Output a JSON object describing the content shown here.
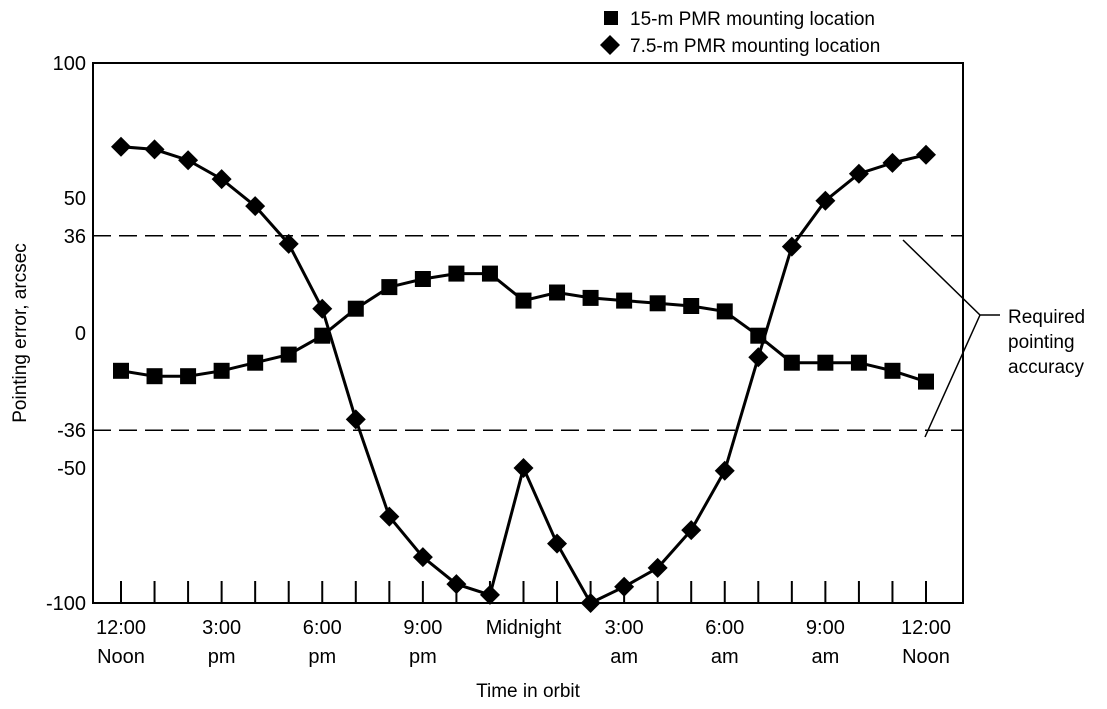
{
  "chart_data": {
    "type": "line",
    "title": "",
    "xlabel": "Time in orbit",
    "ylabel": "Pointing error, arcsec",
    "ylim": [
      -100,
      100
    ],
    "xlim": [
      0,
      24
    ],
    "yticks": [
      100,
      50,
      36,
      0,
      -36,
      -50,
      -100
    ],
    "xticks": [
      {
        "x": 0,
        "line1": "12:00",
        "line2": "Noon"
      },
      {
        "x": 3,
        "line1": "3:00",
        "line2": "pm"
      },
      {
        "x": 6,
        "line1": "6:00",
        "line2": "pm"
      },
      {
        "x": 9,
        "line1": "9:00",
        "line2": "pm"
      },
      {
        "x": 12,
        "line1": "Midnight",
        "line2": ""
      },
      {
        "x": 15,
        "line1": "3:00",
        "line2": "am"
      },
      {
        "x": 18,
        "line1": "6:00",
        "line2": "am"
      },
      {
        "x": 21,
        "line1": "9:00",
        "line2": "am"
      },
      {
        "x": 24,
        "line1": "12:00",
        "line2": "Noon"
      }
    ],
    "grid": false,
    "legend_position": "top-right",
    "series": [
      {
        "name": "15-m PMR mounting location",
        "marker": "square",
        "x": [
          0,
          1,
          2,
          3,
          4,
          5,
          6,
          7,
          8,
          9,
          10,
          11,
          12,
          13,
          14,
          15,
          16,
          17,
          18,
          19,
          20,
          21,
          22,
          23,
          24
        ],
        "y": [
          -14,
          -16,
          -16,
          -14,
          -11,
          -8,
          -1,
          9,
          17,
          20,
          22,
          22,
          12,
          15,
          13,
          12,
          11,
          10,
          8,
          -1,
          -11,
          -11,
          -11,
          -14,
          -18
        ]
      },
      {
        "name": "7.5-m PMR mounting location",
        "marker": "diamond",
        "x": [
          0,
          1,
          2,
          3,
          4,
          5,
          6,
          7,
          8,
          9,
          10,
          11,
          12,
          13,
          14,
          15,
          16,
          17,
          18,
          19,
          20,
          21,
          22,
          23,
          24
        ],
        "y": [
          69,
          68,
          64,
          57,
          47,
          33,
          9,
          -32,
          -68,
          -83,
          -93,
          -97,
          -50,
          -78,
          -100,
          -94,
          -87,
          -73,
          -51,
          -9,
          32,
          49,
          59,
          63,
          66
        ]
      }
    ],
    "reference_lines": [
      36,
      -36
    ],
    "annotations": [
      {
        "lines": [
          "Required",
          "pointing",
          "accuracy"
        ]
      }
    ]
  }
}
